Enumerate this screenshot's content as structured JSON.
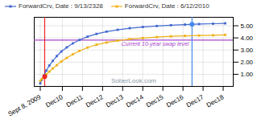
{
  "chart_data": {
    "type": "line",
    "x": [
      0.0,
      0.08,
      0.18,
      0.3,
      0.45,
      0.62,
      0.82,
      1.05,
      1.32,
      1.62,
      1.95,
      2.35,
      2.8,
      3.3,
      3.85,
      4.45,
      5.1,
      5.8,
      6.5,
      7.2,
      7.9,
      8.6,
      9.2
    ],
    "series": [
      {
        "name": "ForwardCrv, Date : 9/13/2328",
        "values": [
          0.25,
          0.55,
          0.9,
          1.3,
          1.72,
          2.1,
          2.5,
          2.88,
          3.22,
          3.55,
          3.83,
          4.1,
          4.33,
          4.52,
          4.67,
          4.8,
          4.9,
          4.98,
          5.05,
          5.1,
          5.14,
          5.17,
          5.2
        ]
      },
      {
        "name": "ForwardCrv, Date : 6/12/2010",
        "values": [
          0.45,
          0.6,
          0.78,
          1.0,
          1.22,
          1.48,
          1.75,
          2.05,
          2.35,
          2.65,
          2.93,
          3.2,
          3.44,
          3.62,
          3.77,
          3.9,
          3.99,
          4.07,
          4.13,
          4.17,
          4.2,
          4.22,
          4.25
        ]
      }
    ],
    "marker": "square",
    "xlim": [
      -0.3,
      9.6
    ],
    "xticks": [
      {
        "value": 0.0,
        "label": "Sept 8, 2009"
      },
      {
        "value": 1.1,
        "label": "Dec10"
      },
      {
        "value": 2.1,
        "label": "Dec11"
      },
      {
        "value": 3.1,
        "label": "Dec12"
      },
      {
        "value": 4.1,
        "label": "Dec13"
      },
      {
        "value": 5.1,
        "label": "Dec14"
      },
      {
        "value": 6.1,
        "label": "Dec15"
      },
      {
        "value": 7.1,
        "label": "Dec16"
      },
      {
        "value": 8.1,
        "label": "Dec17"
      },
      {
        "value": 9.1,
        "label": "Dec18"
      }
    ],
    "ylim": [
      0.0,
      5.7
    ],
    "yticks": [
      {
        "value": 1.0,
        "label": "1.00"
      },
      {
        "value": 2.0,
        "label": "2.00"
      },
      {
        "value": 3.0,
        "label": "3.00"
      },
      {
        "value": 4.0,
        "label": "4.00"
      },
      {
        "value": 5.0,
        "label": "5.00"
      }
    ],
    "grid": true,
    "legend": "top",
    "hlines": [
      {
        "y": 3.82,
        "label": "Current 10-year swap level",
        "color": "#aa44cc"
      }
    ],
    "vlines": [
      {
        "x": 0.22,
        "color": "#ee2222"
      },
      {
        "x": 7.55,
        "color": "#4488ee"
      }
    ],
    "points": [
      {
        "x": 0.22,
        "y": 0.82,
        "color": "#ee2222"
      },
      {
        "x": 7.55,
        "y": 5.12,
        "color": "#4488ee"
      }
    ],
    "watermark": "SoberLook.com"
  }
}
